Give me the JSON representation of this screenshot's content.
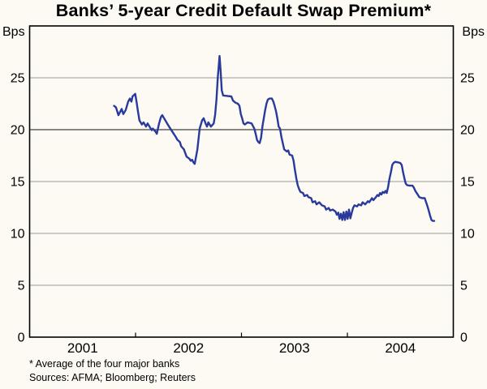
{
  "title": "Banks’ 5-year Credit Default Swap Premium*",
  "y_unit_left": "Bps",
  "y_unit_right": "Bps",
  "footnote_line1": "* Average of the four major banks",
  "footnote_line2": "Sources: AFMA; Bloomberg; Reuters",
  "colors": {
    "line": "#2a3a9c",
    "grid": "#999999",
    "grid_dark": "#111111",
    "frame": "#000000",
    "text": "#000000",
    "background": "#fcfaf3"
  },
  "chart_data": {
    "type": "line",
    "title": "Banks’ 5-year Credit Default Swap Premium*",
    "xlabel": "",
    "ylabel": "Bps",
    "ylim": [
      0,
      30
    ],
    "yticks": [
      0,
      5,
      10,
      15,
      20,
      25
    ],
    "emphasized_gridline": 20,
    "xlim": [
      2001,
      2005
    ],
    "xtick_boundaries": [
      2002,
      2003,
      2004
    ],
    "xtick_labels": [
      {
        "label": "2001",
        "x": 2001.5
      },
      {
        "label": "2002",
        "x": 2002.5
      },
      {
        "label": "2003",
        "x": 2003.5
      },
      {
        "label": "2004",
        "x": 2004.5
      }
    ],
    "grid": "horizontal",
    "legend": "none",
    "series": [
      {
        "name": "Average 5-year credit default swap premium of the four major banks",
        "unit": "Bps",
        "points": [
          [
            2001.797,
            22.3
          ],
          [
            2001.815,
            22.15
          ],
          [
            2001.838,
            21.4
          ],
          [
            2001.869,
            22.0
          ],
          [
            2001.884,
            21.5
          ],
          [
            2001.907,
            21.9
          ],
          [
            2001.93,
            22.7
          ],
          [
            2001.946,
            23.0
          ],
          [
            2001.961,
            22.7
          ],
          [
            2001.972,
            23.2
          ],
          [
            2001.997,
            23.45
          ],
          [
            2002.009,
            22.7
          ],
          [
            2002.022,
            21.8
          ],
          [
            2002.037,
            20.9
          ],
          [
            2002.06,
            20.5
          ],
          [
            2002.076,
            20.7
          ],
          [
            2002.099,
            20.3
          ],
          [
            2002.114,
            20.6
          ],
          [
            2002.137,
            20.2
          ],
          [
            2002.153,
            19.95
          ],
          [
            2002.163,
            20.1
          ],
          [
            2002.189,
            19.8
          ],
          [
            2002.201,
            19.6
          ],
          [
            2002.222,
            20.6
          ],
          [
            2002.239,
            21.2
          ],
          [
            2002.252,
            21.4
          ],
          [
            2002.275,
            21.0
          ],
          [
            2002.304,
            20.5
          ],
          [
            2002.329,
            20.1
          ],
          [
            2002.354,
            19.7
          ],
          [
            2002.38,
            19.3
          ],
          [
            2002.393,
            19.05
          ],
          [
            2002.419,
            18.8
          ],
          [
            2002.431,
            18.4
          ],
          [
            2002.457,
            18.1
          ],
          [
            2002.469,
            17.75
          ],
          [
            2002.482,
            17.4
          ],
          [
            2002.508,
            17.2
          ],
          [
            2002.521,
            17.0
          ],
          [
            2002.534,
            17.1
          ],
          [
            2002.546,
            16.85
          ],
          [
            2002.559,
            16.7
          ],
          [
            2002.584,
            18.1
          ],
          [
            2002.605,
            20.1
          ],
          [
            2002.628,
            20.9
          ],
          [
            2002.643,
            21.1
          ],
          [
            2002.661,
            20.6
          ],
          [
            2002.674,
            20.3
          ],
          [
            2002.687,
            20.7
          ],
          [
            2002.712,
            20.3
          ],
          [
            2002.738,
            20.6
          ],
          [
            2002.751,
            21.4
          ],
          [
            2002.764,
            22.9
          ],
          [
            2002.776,
            25.0
          ],
          [
            2002.793,
            27.1
          ],
          [
            2002.802,
            25.8
          ],
          [
            2002.81,
            24.5
          ],
          [
            2002.814,
            23.8
          ],
          [
            2002.827,
            23.3
          ],
          [
            2002.866,
            23.25
          ],
          [
            2002.904,
            23.2
          ],
          [
            2002.92,
            22.8
          ],
          [
            2002.943,
            22.6
          ],
          [
            2002.966,
            22.5
          ],
          [
            2002.981,
            22.3
          ],
          [
            2002.994,
            21.5
          ],
          [
            2003.006,
            21.1
          ],
          [
            2003.019,
            20.6
          ],
          [
            2003.032,
            20.5
          ],
          [
            2003.058,
            20.7
          ],
          [
            2003.096,
            20.6
          ],
          [
            2003.121,
            20.1
          ],
          [
            2003.134,
            19.6
          ],
          [
            2003.147,
            19.0
          ],
          [
            2003.16,
            18.8
          ],
          [
            2003.172,
            18.7
          ],
          [
            2003.185,
            19.2
          ],
          [
            2003.198,
            20.3
          ],
          [
            2003.211,
            21.1
          ],
          [
            2003.224,
            21.9
          ],
          [
            2003.236,
            22.5
          ],
          [
            2003.249,
            22.9
          ],
          [
            2003.264,
            23.0
          ],
          [
            2003.287,
            23.0
          ],
          [
            2003.301,
            22.7
          ],
          [
            2003.313,
            22.3
          ],
          [
            2003.326,
            21.8
          ],
          [
            2003.339,
            21.1
          ],
          [
            2003.351,
            20.3
          ],
          [
            2003.364,
            20.1
          ],
          [
            2003.377,
            19.3
          ],
          [
            2003.403,
            18.1
          ],
          [
            2003.428,
            17.9
          ],
          [
            2003.441,
            18.0
          ],
          [
            2003.454,
            17.6
          ],
          [
            2003.479,
            17.5
          ],
          [
            2003.492,
            17.0
          ],
          [
            2003.505,
            16.1
          ],
          [
            2003.518,
            15.3
          ],
          [
            2003.531,
            14.65
          ],
          [
            2003.543,
            14.3
          ],
          [
            2003.556,
            14.0
          ],
          [
            2003.581,
            13.9
          ],
          [
            2003.594,
            13.6
          ],
          [
            2003.62,
            13.7
          ],
          [
            2003.632,
            13.5
          ],
          [
            2003.658,
            13.4
          ],
          [
            2003.671,
            13.0
          ],
          [
            2003.696,
            13.1
          ],
          [
            2003.709,
            12.8
          ],
          [
            2003.734,
            13.0
          ],
          [
            2003.76,
            12.7
          ],
          [
            2003.786,
            12.6
          ],
          [
            2003.799,
            12.3
          ],
          [
            2003.824,
            12.45
          ],
          [
            2003.837,
            12.2
          ],
          [
            2003.862,
            12.3
          ],
          [
            2003.888,
            12.1
          ],
          [
            2003.9,
            11.8
          ],
          [
            2003.914,
            12.0
          ],
          [
            2003.926,
            11.4
          ],
          [
            2003.939,
            11.9
          ],
          [
            2003.952,
            11.3
          ],
          [
            2003.964,
            12.05
          ],
          [
            2003.977,
            11.3
          ],
          [
            2003.99,
            12.1
          ],
          [
            2004.002,
            11.4
          ],
          [
            2004.015,
            12.3
          ],
          [
            2004.028,
            11.45
          ],
          [
            2004.041,
            12.0
          ],
          [
            2004.054,
            12.45
          ],
          [
            2004.067,
            12.7
          ],
          [
            2004.092,
            12.6
          ],
          [
            2004.105,
            12.8
          ],
          [
            2004.13,
            12.7
          ],
          [
            2004.143,
            13.0
          ],
          [
            2004.168,
            12.8
          ],
          [
            2004.194,
            13.1
          ],
          [
            2004.206,
            13.0
          ],
          [
            2004.232,
            13.4
          ],
          [
            2004.245,
            13.2
          ],
          [
            2004.27,
            13.5
          ],
          [
            2004.283,
            13.7
          ],
          [
            2004.296,
            13.6
          ],
          [
            2004.309,
            13.9
          ],
          [
            2004.321,
            13.75
          ],
          [
            2004.334,
            14.0
          ],
          [
            2004.347,
            13.9
          ],
          [
            2004.36,
            14.1
          ],
          [
            2004.372,
            13.9
          ],
          [
            2004.385,
            14.5
          ],
          [
            2004.398,
            15.3
          ],
          [
            2004.411,
            15.9
          ],
          [
            2004.424,
            16.6
          ],
          [
            2004.436,
            16.8
          ],
          [
            2004.452,
            16.9
          ],
          [
            2004.475,
            16.85
          ],
          [
            2004.498,
            16.8
          ],
          [
            2004.513,
            16.6
          ],
          [
            2004.526,
            15.9
          ],
          [
            2004.539,
            15.3
          ],
          [
            2004.551,
            14.8
          ],
          [
            2004.564,
            14.65
          ],
          [
            2004.59,
            14.6
          ],
          [
            2004.615,
            14.6
          ],
          [
            2004.628,
            14.4
          ],
          [
            2004.641,
            14.1
          ],
          [
            2004.654,
            13.9
          ],
          [
            2004.667,
            13.7
          ],
          [
            2004.679,
            13.5
          ],
          [
            2004.705,
            13.4
          ],
          [
            2004.73,
            13.4
          ],
          [
            2004.743,
            13.0
          ],
          [
            2004.756,
            12.6
          ],
          [
            2004.768,
            12.2
          ],
          [
            2004.781,
            11.7
          ],
          [
            2004.794,
            11.3
          ],
          [
            2004.807,
            11.2
          ],
          [
            2004.82,
            11.2
          ]
        ]
      }
    ]
  }
}
